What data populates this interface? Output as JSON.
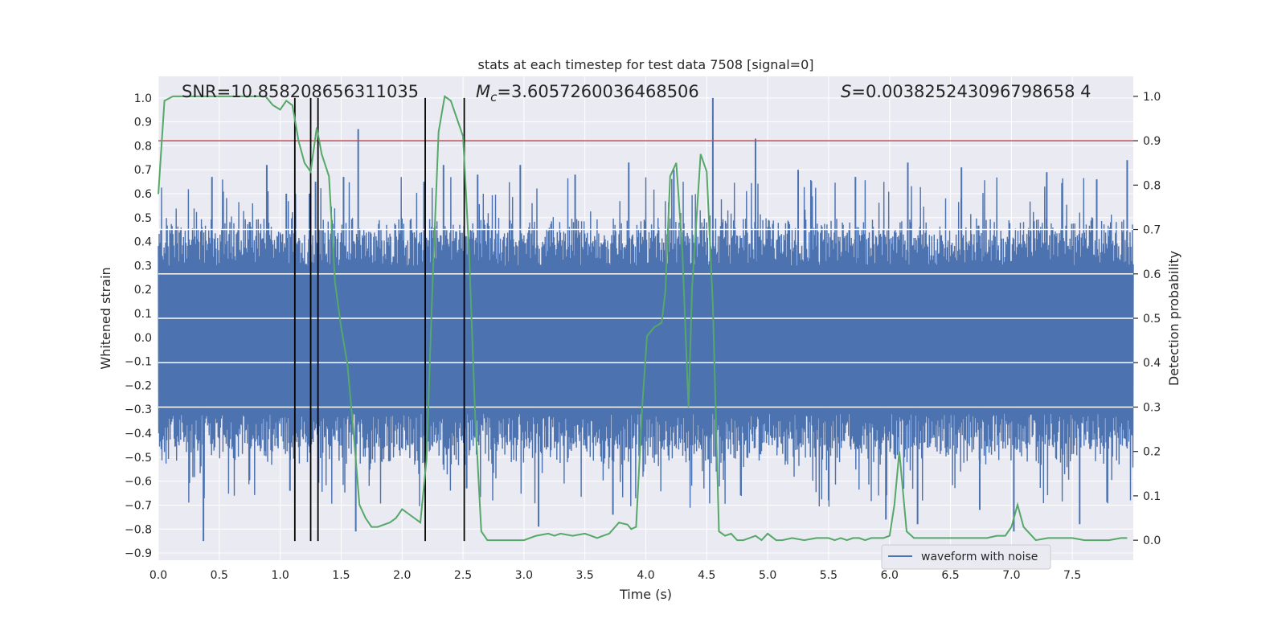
{
  "chart_data": {
    "type": "line",
    "title": "stats at each timestep for test data 7508 [signal=0]",
    "xlabel": "Time (s)",
    "ylabel": "Whitened strain",
    "y2label": "Detection probability",
    "xlim": [
      0.0,
      8.0
    ],
    "ylim": [
      -0.93,
      1.09
    ],
    "y2lim": [
      -0.045,
      1.045
    ],
    "x_ticks": [
      "0.0",
      "0.5",
      "1.0",
      "1.5",
      "2.0",
      "2.5",
      "3.0",
      "3.5",
      "4.0",
      "4.5",
      "5.0",
      "5.5",
      "6.0",
      "6.5",
      "7.0",
      "7.5"
    ],
    "y_ticks": [
      "-0.9",
      "-0.8",
      "-0.7",
      "-0.6",
      "-0.5",
      "-0.4",
      "-0.3",
      "-0.2",
      "-0.1",
      "0.0",
      "0.1",
      "0.2",
      "0.3",
      "0.4",
      "0.5",
      "0.6",
      "0.7",
      "0.8",
      "0.9",
      "1.0"
    ],
    "y2_ticks": [
      "0.0",
      "0.1",
      "0.2",
      "0.3",
      "0.4",
      "0.5",
      "0.6",
      "0.7",
      "0.8",
      "0.9",
      "1.0"
    ],
    "grid": true,
    "legend_position": "bottom-right",
    "annotations": {
      "snr": "SNR=10.858208656311035",
      "mc_symbol": "M",
      "mc_sub": "c",
      "mc_value": "=3.6057260036468506",
      "s_symbol": "S",
      "s_value": "=0.003825243096798658 4"
    },
    "series": [
      {
        "name": "waveform with noise",
        "axis": "left",
        "color": "#4c72b0",
        "envelope": {
          "typical_positive": 0.42,
          "typical_negative": -0.47,
          "peaks": [
            [
              0.37,
              -0.85
            ],
            [
              0.44,
              0.67
            ],
            [
              0.89,
              0.72
            ],
            [
              1.05,
              0.6
            ],
            [
              1.08,
              -0.64
            ],
            [
              1.24,
              0.6
            ],
            [
              1.29,
              0.65
            ],
            [
              1.52,
              0.67
            ],
            [
              1.62,
              -0.81
            ],
            [
              1.64,
              0.87
            ],
            [
              2.18,
              0.65
            ],
            [
              2.34,
              0.72
            ],
            [
              2.53,
              -0.63
            ],
            [
              2.62,
              0.68
            ],
            [
              2.97,
              0.72
            ],
            [
              3.12,
              -0.79
            ],
            [
              3.42,
              0.68
            ],
            [
              3.73,
              -0.74
            ],
            [
              3.86,
              0.73
            ],
            [
              3.98,
              -0.56
            ],
            [
              4.23,
              0.7
            ],
            [
              4.55,
              1.0
            ],
            [
              4.58,
              -0.56
            ],
            [
              4.9,
              0.83
            ],
            [
              5.25,
              0.7
            ],
            [
              5.5,
              -0.68
            ],
            [
              5.72,
              0.67
            ],
            [
              5.97,
              -0.76
            ],
            [
              6.15,
              0.73
            ],
            [
              6.23,
              -0.78
            ],
            [
              6.59,
              0.71
            ],
            [
              6.74,
              -0.72
            ],
            [
              7.02,
              -0.81
            ],
            [
              7.29,
              0.69
            ],
            [
              7.56,
              -0.78
            ],
            [
              7.7,
              0.66
            ],
            [
              7.95,
              0.74
            ]
          ]
        }
      },
      {
        "name": "",
        "axis": "right",
        "color": "#55a868",
        "x": [
          0.0,
          0.05,
          0.12,
          0.2,
          0.3,
          0.4,
          0.5,
          0.6,
          0.7,
          0.8,
          0.88,
          0.94,
          1.0,
          1.05,
          1.1,
          1.15,
          1.2,
          1.25,
          1.3,
          1.34,
          1.4,
          1.45,
          1.5,
          1.55,
          1.6,
          1.65,
          1.7,
          1.75,
          1.8,
          1.85,
          1.9,
          1.95,
          2.0,
          2.05,
          2.1,
          2.15,
          2.2,
          2.25,
          2.3,
          2.35,
          2.4,
          2.45,
          2.5,
          2.55,
          2.6,
          2.65,
          2.7,
          2.8,
          2.9,
          3.0,
          3.1,
          3.2,
          3.25,
          3.3,
          3.4,
          3.5,
          3.55,
          3.6,
          3.65,
          3.7,
          3.78,
          3.85,
          3.88,
          3.92,
          3.97,
          4.01,
          4.07,
          4.13,
          4.16,
          4.2,
          4.25,
          4.3,
          4.35,
          4.38,
          4.45,
          4.5,
          4.55,
          4.6,
          4.65,
          4.7,
          4.75,
          4.8,
          4.85,
          4.9,
          4.95,
          5.0,
          5.07,
          5.12,
          5.2,
          5.3,
          5.4,
          5.5,
          5.55,
          5.6,
          5.65,
          5.7,
          5.75,
          5.8,
          5.85,
          5.9,
          5.95,
          6.0,
          6.04,
          6.08,
          6.14,
          6.2,
          6.3,
          6.4,
          6.5,
          6.6,
          6.7,
          6.8,
          6.88,
          6.95,
          7.0,
          7.05,
          7.1,
          7.2,
          7.3,
          7.4,
          7.5,
          7.6,
          7.7,
          7.8,
          7.9,
          7.95
        ],
        "values": [
          0.78,
          0.99,
          1.0,
          1.0,
          1.0,
          1.0,
          1.0,
          1.0,
          1.0,
          1.0,
          1.0,
          0.98,
          0.97,
          0.99,
          0.98,
          0.9,
          0.85,
          0.83,
          0.93,
          0.87,
          0.82,
          0.58,
          0.48,
          0.4,
          0.25,
          0.08,
          0.05,
          0.03,
          0.03,
          0.035,
          0.04,
          0.05,
          0.07,
          0.06,
          0.05,
          0.04,
          0.18,
          0.58,
          0.92,
          1.0,
          0.99,
          0.95,
          0.91,
          0.65,
          0.28,
          0.02,
          0.0,
          0.0,
          0.0,
          0.0,
          0.01,
          0.015,
          0.01,
          0.015,
          0.01,
          0.015,
          0.01,
          0.005,
          0.01,
          0.015,
          0.04,
          0.035,
          0.025,
          0.03,
          0.3,
          0.46,
          0.48,
          0.49,
          0.56,
          0.82,
          0.85,
          0.65,
          0.3,
          0.57,
          0.87,
          0.83,
          0.53,
          0.02,
          0.01,
          0.015,
          0.0,
          0.0,
          0.005,
          0.01,
          0.0,
          0.015,
          0.0,
          0.0,
          0.005,
          0.0,
          0.005,
          0.005,
          0.0,
          0.005,
          0.0,
          0.005,
          0.005,
          0.0,
          0.005,
          0.005,
          0.005,
          0.01,
          0.08,
          0.2,
          0.02,
          0.005,
          0.005,
          0.005,
          0.005,
          0.005,
          0.005,
          0.005,
          0.01,
          0.01,
          0.03,
          0.08,
          0.03,
          0.0,
          0.005,
          0.005,
          0.005,
          0.0,
          0.0,
          0.0,
          0.005,
          0.005
        ]
      }
    ],
    "threshold_line": {
      "axis": "right",
      "value": 0.9,
      "color": "#c44e52"
    },
    "vertical_markers": {
      "x": [
        1.12,
        1.25,
        1.31,
        2.19,
        2.51
      ],
      "from": -0.85,
      "to": 1.0,
      "color": "#000000"
    }
  }
}
